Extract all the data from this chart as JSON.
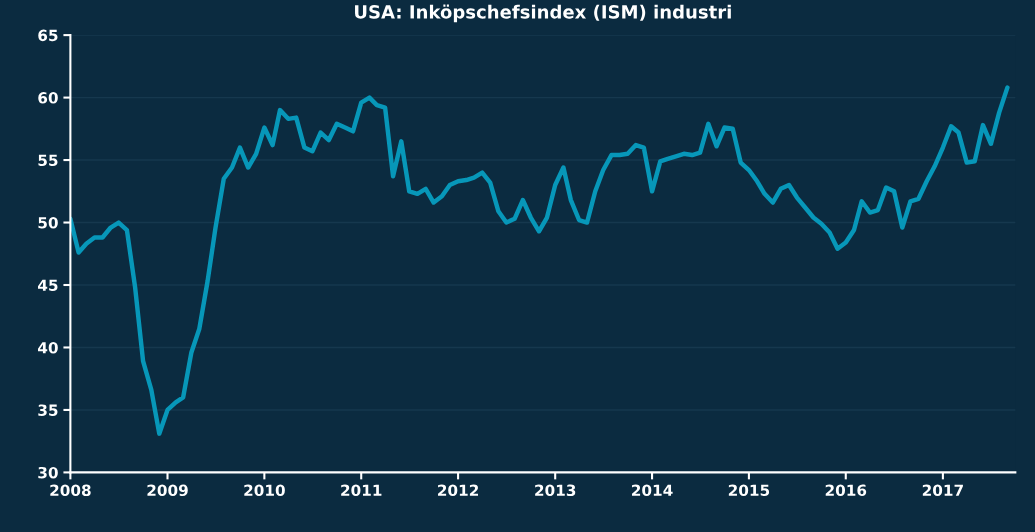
{
  "chart_data": {
    "type": "line",
    "title": "USA: Inköpschefsindex (ISM) industri",
    "x": [
      "2008-01",
      "2008-02",
      "2008-03",
      "2008-04",
      "2008-05",
      "2008-06",
      "2008-07",
      "2008-08",
      "2008-09",
      "2008-10",
      "2008-11",
      "2008-12",
      "2009-01",
      "2009-02",
      "2009-03",
      "2009-04",
      "2009-05",
      "2009-06",
      "2009-07",
      "2009-08",
      "2009-09",
      "2009-10",
      "2009-11",
      "2009-12",
      "2010-01",
      "2010-02",
      "2010-03",
      "2010-04",
      "2010-05",
      "2010-06",
      "2010-07",
      "2010-08",
      "2010-09",
      "2010-10",
      "2010-11",
      "2010-12",
      "2011-01",
      "2011-02",
      "2011-03",
      "2011-04",
      "2011-05",
      "2011-06",
      "2011-07",
      "2011-08",
      "2011-09",
      "2011-10",
      "2011-11",
      "2011-12",
      "2012-01",
      "2012-02",
      "2012-03",
      "2012-04",
      "2012-05",
      "2012-06",
      "2012-07",
      "2012-08",
      "2012-09",
      "2012-10",
      "2012-11",
      "2012-12",
      "2013-01",
      "2013-02",
      "2013-03",
      "2013-04",
      "2013-05",
      "2013-06",
      "2013-07",
      "2013-08",
      "2013-09",
      "2013-10",
      "2013-11",
      "2013-12",
      "2014-01",
      "2014-02",
      "2014-03",
      "2014-04",
      "2014-05",
      "2014-06",
      "2014-07",
      "2014-08",
      "2014-09",
      "2014-10",
      "2014-11",
      "2014-12",
      "2015-01",
      "2015-02",
      "2015-03",
      "2015-04",
      "2015-05",
      "2015-06",
      "2015-07",
      "2015-08",
      "2015-09",
      "2015-10",
      "2015-11",
      "2015-12",
      "2016-01",
      "2016-02",
      "2016-03",
      "2016-04",
      "2016-05",
      "2016-06",
      "2016-07",
      "2016-08",
      "2016-09",
      "2016-10",
      "2016-11",
      "2016-12",
      "2017-01",
      "2017-02",
      "2017-03",
      "2017-04",
      "2017-05",
      "2017-06",
      "2017-07",
      "2017-08",
      "2017-09"
    ],
    "series": [
      {
        "color": "#0797b9",
        "values": [
          50.3,
          47.6,
          48.3,
          48.8,
          48.8,
          49.6,
          50.0,
          49.4,
          44.8,
          38.9,
          36.6,
          33.1,
          35.0,
          35.6,
          36.0,
          39.6,
          41.5,
          45.3,
          49.6,
          53.5,
          54.4,
          56.0,
          54.4,
          55.5,
          57.6,
          56.2,
          59.0,
          58.3,
          58.4,
          56.0,
          55.7,
          57.2,
          56.6,
          57.9,
          57.6,
          57.3,
          59.6,
          60.0,
          59.4,
          59.2,
          53.7,
          56.5,
          52.5,
          52.3,
          52.7,
          51.6,
          52.1,
          53.0,
          53.3,
          53.4,
          53.6,
          54.0,
          53.2,
          50.9,
          50.0,
          50.3,
          51.8,
          50.4,
          49.3,
          50.4,
          53.0,
          54.4,
          51.8,
          50.2,
          50.0,
          52.5,
          54.2,
          55.4,
          55.4,
          55.5,
          56.2,
          56.0,
          52.5,
          54.9,
          55.1,
          55.3,
          55.5,
          55.4,
          55.6,
          57.9,
          56.1,
          57.6,
          57.5,
          54.8,
          54.2,
          53.3,
          52.3,
          51.6,
          52.7,
          53.0,
          52.0,
          51.2,
          50.4,
          49.9,
          49.2,
          47.9,
          48.4,
          49.4,
          51.7,
          50.8,
          51.0,
          52.8,
          52.5,
          49.6,
          51.7,
          51.9,
          53.3,
          54.5,
          56.0,
          57.7,
          57.2,
          54.8,
          54.9,
          57.8,
          56.3,
          58.8,
          60.8
        ]
      }
    ],
    "xlim": [
      "2008-01",
      "2017-10"
    ],
    "xticks": [
      "2008",
      "2009",
      "2010",
      "2011",
      "2012",
      "2013",
      "2014",
      "2015",
      "2016",
      "2017"
    ],
    "ylim": [
      30,
      65
    ],
    "yticks": [
      30,
      35,
      40,
      45,
      50,
      55,
      60,
      65
    ],
    "grid": "y",
    "line_style": "solid",
    "marker": "none"
  }
}
